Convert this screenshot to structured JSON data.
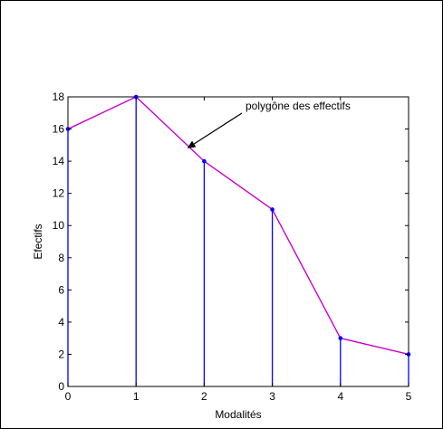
{
  "chart_data": {
    "type": "line",
    "title": "",
    "xlabel": "Modalités",
    "ylabel": "Efectifs",
    "xlim": [
      0,
      5
    ],
    "ylim": [
      0,
      18
    ],
    "xticks": [
      0,
      1,
      2,
      3,
      4,
      5
    ],
    "yticks": [
      0,
      2,
      4,
      6,
      8,
      10,
      12,
      14,
      16,
      18
    ],
    "grid": false,
    "x": [
      0,
      1,
      2,
      3,
      4,
      5
    ],
    "y": [
      16,
      18,
      14,
      11,
      3,
      2
    ],
    "stem_color": "#0000ff",
    "line_color": "#cc00cc",
    "annotation": {
      "text": "polygône des effectifs",
      "arrow_target": [
        1.75,
        14.8
      ]
    }
  }
}
